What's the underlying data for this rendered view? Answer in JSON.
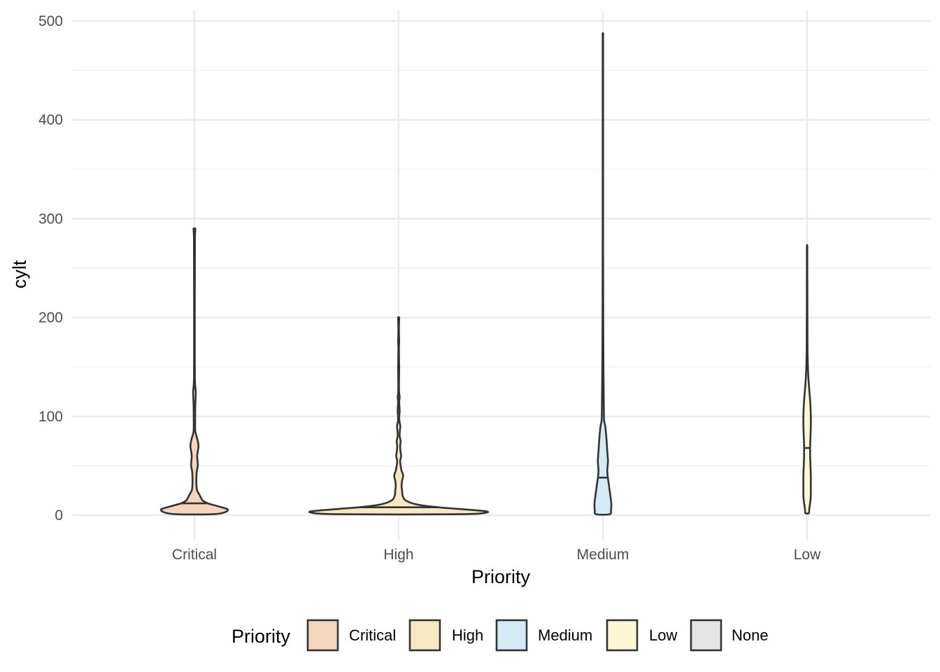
{
  "chart_data": {
    "type": "violin",
    "title": "",
    "xlabel": "Priority",
    "ylabel": "cylt",
    "ylim": [
      -8,
      510
    ],
    "y_ticks": [
      0,
      100,
      200,
      300,
      400,
      500
    ],
    "grid": true,
    "legend_position": "bottom",
    "legend": {
      "title": "Priority",
      "entries": [
        {
          "label": "Critical",
          "color": "#f4d5bd"
        },
        {
          "label": "High",
          "color": "#f8e8c2"
        },
        {
          "label": "Medium",
          "color": "#d5eaf7"
        },
        {
          "label": "Low",
          "color": "#fbf7d4"
        },
        {
          "label": "None",
          "color": "#e5e5e5"
        }
      ]
    },
    "categories": [
      "Critical",
      "High",
      "Medium",
      "Low"
    ],
    "series": [
      {
        "category": "Critical",
        "color": "#f4d5bd",
        "min": 1,
        "max": 290,
        "median": 12,
        "profile": [
          [
            1,
            0.28
          ],
          [
            3,
            0.45
          ],
          [
            6,
            0.49
          ],
          [
            9,
            0.35
          ],
          [
            12,
            0.2
          ],
          [
            15,
            0.12
          ],
          [
            20,
            0.08
          ],
          [
            25,
            0.04
          ],
          [
            30,
            0.03
          ],
          [
            40,
            0.03
          ],
          [
            45,
            0.035
          ],
          [
            50,
            0.05
          ],
          [
            55,
            0.045
          ],
          [
            60,
            0.04
          ],
          [
            65,
            0.05
          ],
          [
            70,
            0.06
          ],
          [
            75,
            0.05
          ],
          [
            80,
            0.03
          ],
          [
            85,
            0.012
          ],
          [
            95,
            0.01
          ],
          [
            110,
            0.012
          ],
          [
            120,
            0.018
          ],
          [
            125,
            0.02
          ],
          [
            130,
            0.012
          ],
          [
            140,
            0.006
          ],
          [
            160,
            0.005
          ],
          [
            200,
            0.005
          ],
          [
            250,
            0.006
          ],
          [
            280,
            0.007
          ],
          [
            288,
            0.012
          ],
          [
            290,
            0.012
          ]
        ]
      },
      {
        "category": "High",
        "color": "#f8e8c2",
        "min": 1,
        "max": 200,
        "median": 8,
        "profile": [
          [
            1,
            0.62
          ],
          [
            3,
            0.9
          ],
          [
            5,
            0.78
          ],
          [
            8,
            0.4
          ],
          [
            11,
            0.18
          ],
          [
            15,
            0.07
          ],
          [
            20,
            0.04
          ],
          [
            25,
            0.035
          ],
          [
            30,
            0.03
          ],
          [
            35,
            0.035
          ],
          [
            40,
            0.045
          ],
          [
            45,
            0.03
          ],
          [
            50,
            0.02
          ],
          [
            55,
            0.015
          ],
          [
            60,
            0.025
          ],
          [
            65,
            0.018
          ],
          [
            70,
            0.015
          ],
          [
            75,
            0.02
          ],
          [
            80,
            0.01
          ],
          [
            85,
            0.012
          ],
          [
            90,
            0.016
          ],
          [
            95,
            0.008
          ],
          [
            100,
            0.006
          ],
          [
            105,
            0.01
          ],
          [
            110,
            0.008
          ],
          [
            115,
            0.006
          ],
          [
            120,
            0.01
          ],
          [
            125,
            0.004
          ],
          [
            140,
            0.004
          ],
          [
            150,
            0.006
          ],
          [
            155,
            0.004
          ],
          [
            170,
            0.003
          ],
          [
            175,
            0.006
          ],
          [
            180,
            0.004
          ],
          [
            190,
            0.003
          ],
          [
            198,
            0.005
          ],
          [
            200,
            0.005
          ]
        ]
      },
      {
        "category": "Medium",
        "color": "#d5eaf7",
        "min": 1,
        "max": 485,
        "median": 38,
        "profile": [
          [
            1,
            0.1
          ],
          [
            5,
            0.12
          ],
          [
            10,
            0.125
          ],
          [
            15,
            0.12
          ],
          [
            20,
            0.11
          ],
          [
            25,
            0.1
          ],
          [
            30,
            0.09
          ],
          [
            35,
            0.08
          ],
          [
            40,
            0.07
          ],
          [
            45,
            0.065
          ],
          [
            50,
            0.07
          ],
          [
            55,
            0.075
          ],
          [
            60,
            0.07
          ],
          [
            65,
            0.065
          ],
          [
            70,
            0.06
          ],
          [
            80,
            0.05
          ],
          [
            90,
            0.035
          ],
          [
            95,
            0.02
          ],
          [
            100,
            0.016
          ],
          [
            120,
            0.012
          ],
          [
            150,
            0.008
          ],
          [
            200,
            0.005
          ],
          [
            300,
            0.003
          ],
          [
            400,
            0.003
          ],
          [
            480,
            0.003
          ],
          [
            485,
            0.003
          ]
        ]
      },
      {
        "category": "Low",
        "color": "#fbf7d4",
        "min": 2,
        "max": 272,
        "median": 68,
        "profile": [
          [
            2,
            0.025
          ],
          [
            5,
            0.03
          ],
          [
            10,
            0.04
          ],
          [
            15,
            0.05
          ],
          [
            20,
            0.055
          ],
          [
            30,
            0.055
          ],
          [
            40,
            0.055
          ],
          [
            50,
            0.05
          ],
          [
            60,
            0.045
          ],
          [
            70,
            0.045
          ],
          [
            80,
            0.05
          ],
          [
            90,
            0.055
          ],
          [
            100,
            0.055
          ],
          [
            110,
            0.05
          ],
          [
            120,
            0.04
          ],
          [
            130,
            0.028
          ],
          [
            140,
            0.018
          ],
          [
            150,
            0.012
          ],
          [
            160,
            0.008
          ],
          [
            170,
            0.006
          ],
          [
            190,
            0.005
          ],
          [
            220,
            0.004
          ],
          [
            260,
            0.003
          ],
          [
            272,
            0.003
          ]
        ]
      }
    ]
  }
}
